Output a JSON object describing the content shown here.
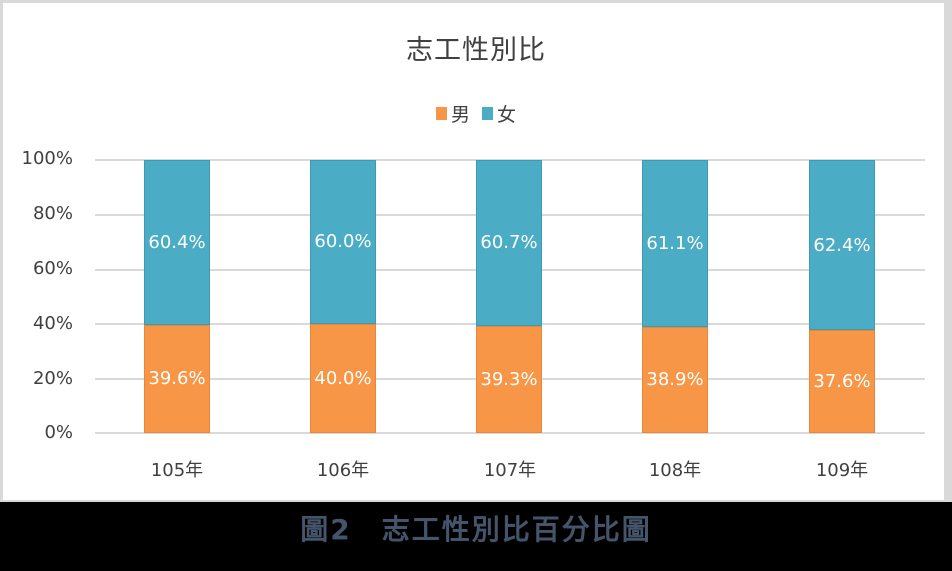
{
  "chart_data": {
    "type": "bar",
    "stacked": true,
    "percent_stacked": true,
    "title": "志工性別比",
    "categories": [
      "105年",
      "106年",
      "107年",
      "108年",
      "109年"
    ],
    "series": [
      {
        "name": "男",
        "color": "#f79646",
        "values": [
          39.6,
          40.0,
          39.3,
          38.9,
          37.6
        ],
        "labels": [
          "39.6%",
          "40.0%",
          "39.3%",
          "38.9%",
          "37.6%"
        ]
      },
      {
        "name": "女",
        "color": "#4bacc6",
        "values": [
          60.4,
          60.0,
          60.7,
          61.1,
          62.4
        ],
        "labels": [
          "60.4%",
          "60.0%",
          "60.7%",
          "61.1%",
          "62.4%"
        ]
      }
    ],
    "yticks": [
      "0%",
      "20%",
      "40%",
      "60%",
      "80%",
      "100%"
    ],
    "ylim": [
      0,
      100
    ],
    "xlabel": "",
    "ylabel": "",
    "grid": true,
    "legend_position": "top"
  },
  "caption": "圖2　志工性別比百分比圖"
}
